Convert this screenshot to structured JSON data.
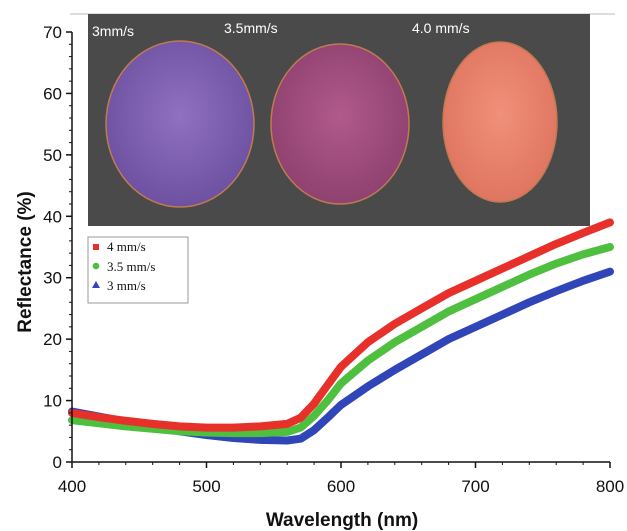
{
  "chart_data": {
    "type": "line",
    "xlabel": "Wavelength (nm)",
    "ylabel": "Reflectance (%)",
    "xlim": [
      400,
      800
    ],
    "ylim": [
      0,
      70
    ],
    "x_ticks": [
      400,
      500,
      600,
      700,
      800
    ],
    "y_ticks": [
      0,
      10,
      20,
      30,
      40,
      50,
      60,
      70
    ],
    "grid": false,
    "legend_position": "middle-left",
    "series": [
      {
        "name": "4 mm/s",
        "color": "#e8302a",
        "marker": "square",
        "x": [
          400,
          420,
          440,
          460,
          480,
          500,
          520,
          540,
          560,
          570,
          580,
          590,
          600,
          620,
          640,
          660,
          680,
          700,
          720,
          740,
          760,
          780,
          800
        ],
        "y": [
          8.0,
          7.3,
          6.7,
          6.2,
          5.8,
          5.6,
          5.6,
          5.8,
          6.2,
          7.2,
          9.5,
          12.5,
          15.5,
          19.5,
          22.5,
          25.0,
          27.5,
          29.5,
          31.5,
          33.5,
          35.5,
          37.3,
          39.0
        ]
      },
      {
        "name": "3.5 mm/s",
        "color": "#4fbf40",
        "marker": "circle",
        "x": [
          400,
          420,
          440,
          460,
          480,
          500,
          520,
          540,
          560,
          570,
          580,
          590,
          600,
          620,
          640,
          660,
          680,
          700,
          720,
          740,
          760,
          780,
          800
        ],
        "y": [
          6.8,
          6.3,
          5.8,
          5.4,
          5.0,
          4.8,
          4.7,
          4.7,
          4.9,
          5.6,
          7.5,
          10.0,
          12.8,
          16.5,
          19.5,
          22.0,
          24.5,
          26.5,
          28.5,
          30.5,
          32.3,
          33.8,
          35.0
        ]
      },
      {
        "name": "3 mm/s",
        "color": "#2f45b8",
        "marker": "triangle",
        "x": [
          400,
          420,
          440,
          460,
          480,
          500,
          520,
          540,
          560,
          570,
          580,
          590,
          600,
          620,
          640,
          660,
          680,
          700,
          720,
          740,
          760,
          780,
          800
        ],
        "y": [
          8.2,
          7.4,
          6.6,
          5.8,
          5.0,
          4.4,
          3.9,
          3.6,
          3.5,
          3.8,
          5.2,
          7.2,
          9.3,
          12.3,
          15.0,
          17.5,
          20.0,
          22.0,
          24.0,
          26.0,
          27.8,
          29.5,
          31.0
        ]
      }
    ]
  },
  "inset_photo": {
    "labels": [
      "3mm/s",
      "3.5mm/s",
      "4.0 mm/s"
    ],
    "background_color": "#4a4a4a",
    "sample_colors": [
      "#7a5aa8",
      "#a04a78",
      "#e8806a"
    ]
  }
}
